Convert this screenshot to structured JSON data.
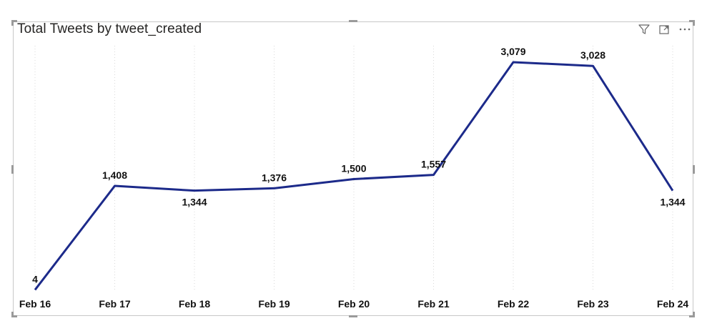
{
  "header": {
    "title": "Total Tweets by tweet_created",
    "icons": [
      "filter-icon",
      "focus-mode-icon",
      "more-options-icon"
    ]
  },
  "colors": {
    "line": "#1c2a8a",
    "gridline": "#d9d9d9",
    "text": "#111111"
  },
  "chart_data": {
    "type": "line",
    "title": "Total Tweets by tweet_created",
    "xlabel": "",
    "ylabel": "",
    "categories": [
      "Feb 16",
      "Feb 17",
      "Feb 18",
      "Feb 19",
      "Feb 20",
      "Feb 21",
      "Feb 22",
      "Feb 23",
      "Feb 24"
    ],
    "series": [
      {
        "name": "Total Tweets",
        "values": [
          4,
          1408,
          1344,
          1376,
          1500,
          1557,
          3079,
          3028,
          1344
        ],
        "labels": [
          "4",
          "1,408",
          "1,344",
          "1,376",
          "1,500",
          "1,557",
          "3,079",
          "3,028",
          "1,344"
        ],
        "label_positions": [
          "above",
          "above",
          "below",
          "above",
          "above",
          "above",
          "above",
          "above",
          "below"
        ]
      }
    ],
    "ylim": [
      -40,
      3320
    ],
    "grid": "vertical-dotted",
    "legend": "none"
  }
}
